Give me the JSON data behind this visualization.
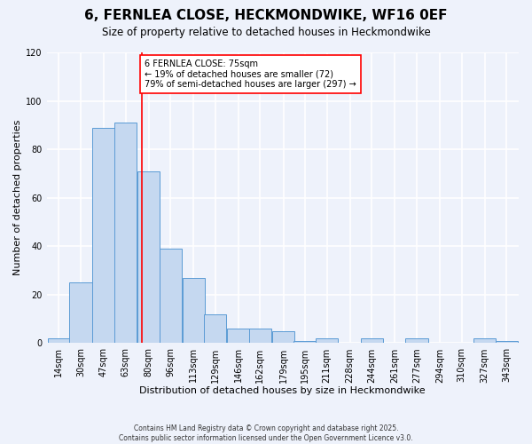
{
  "title": "6, FERNLEA CLOSE, HECKMONDWIKE, WF16 0EF",
  "subtitle": "Size of property relative to detached houses in Heckmondwike",
  "xlabel": "Distribution of detached houses by size in Heckmondwike",
  "ylabel": "Number of detached properties",
  "bar_labels": [
    "14sqm",
    "30sqm",
    "47sqm",
    "63sqm",
    "80sqm",
    "96sqm",
    "113sqm",
    "129sqm",
    "146sqm",
    "162sqm",
    "179sqm",
    "195sqm",
    "211sqm",
    "228sqm",
    "244sqm",
    "261sqm",
    "277sqm",
    "294sqm",
    "310sqm",
    "327sqm",
    "343sqm"
  ],
  "bar_values": [
    2,
    25,
    89,
    91,
    71,
    39,
    27,
    12,
    6,
    6,
    5,
    1,
    2,
    0,
    2,
    0,
    2,
    0,
    0,
    2,
    1
  ],
  "ylim": [
    0,
    120
  ],
  "yticks": [
    0,
    20,
    40,
    60,
    80,
    100,
    120
  ],
  "bar_color": "#c5d8f0",
  "bar_edge_color": "#5b9bd5",
  "vline_x": 75,
  "vline_color": "red",
  "annotation_title": "6 FERNLEA CLOSE: 75sqm",
  "annotation_line1": "← 19% of detached houses are smaller (72)",
  "annotation_line2": "79% of semi-detached houses are larger (297) →",
  "annotation_box_color": "white",
  "annotation_box_edge": "red",
  "footer1": "Contains HM Land Registry data © Crown copyright and database right 2025.",
  "footer2": "Contains public sector information licensed under the Open Government Licence v3.0.",
  "bg_color": "#eef2fb",
  "grid_color": "white",
  "title_fontsize": 11,
  "subtitle_fontsize": 8.5,
  "xlabel_fontsize": 8,
  "ylabel_fontsize": 8,
  "tick_fontsize": 7,
  "footer_fontsize": 5.5,
  "annotation_fontsize": 7
}
